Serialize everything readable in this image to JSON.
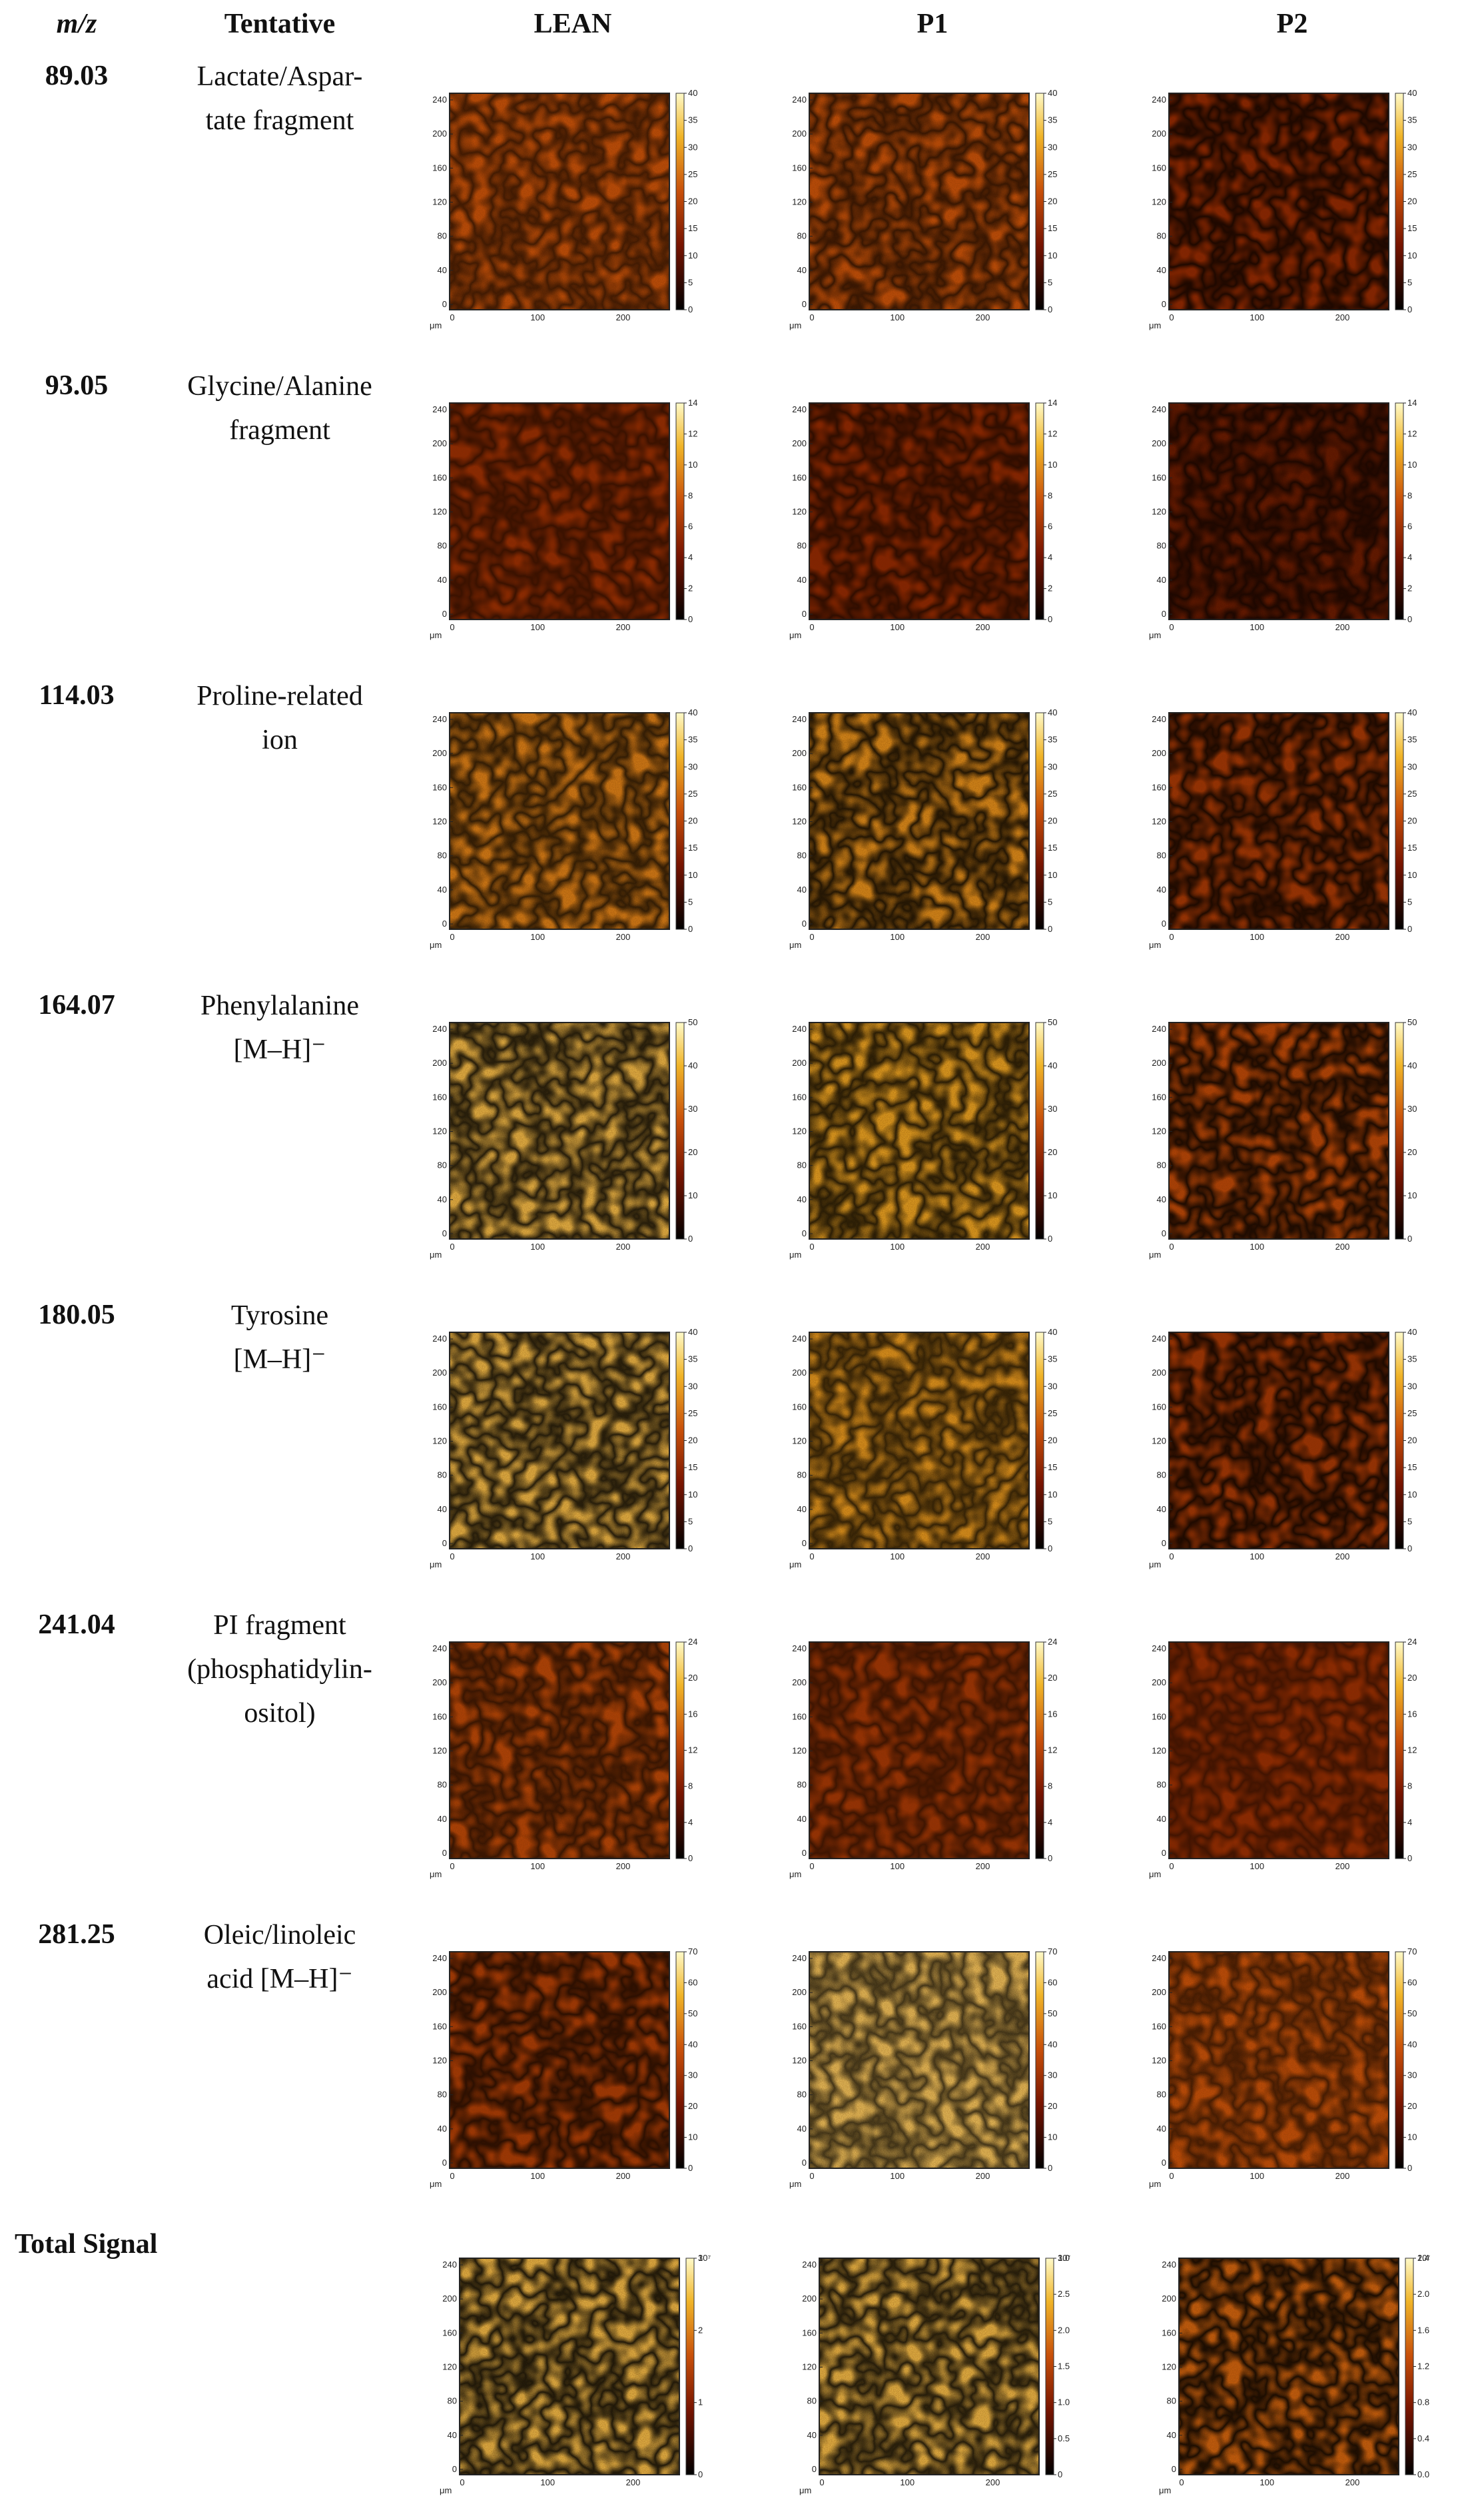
{
  "headers": {
    "mz": "m/z",
    "tentative": "Tentative",
    "columns": [
      "LEAN",
      "P1",
      "P2"
    ]
  },
  "unit_label": "μm",
  "x_ticks": [
    "0",
    "100",
    "200"
  ],
  "y_ticks": [
    "0",
    "40",
    "80",
    "120",
    "160",
    "200",
    "240"
  ],
  "rows": [
    {
      "mz": "89.03",
      "tentative": [
        "Lactate/Aspar-",
        "tate fragment"
      ],
      "scale": [
        "0",
        "5",
        "10",
        "15",
        "20",
        "25",
        "30",
        "35",
        "40"
      ],
      "intensity": [
        0.55,
        0.55,
        0.35
      ],
      "crack": [
        0.5,
        0.6,
        0.75
      ]
    },
    {
      "mz": "93.05",
      "tentative": [
        "Glycine/Alanine",
        "fragment"
      ],
      "scale": [
        "0",
        "2",
        "4",
        "6",
        "8",
        "10",
        "12",
        "14"
      ],
      "intensity": [
        0.38,
        0.35,
        0.22
      ],
      "crack": [
        0.4,
        0.5,
        0.6
      ]
    },
    {
      "mz": "114.03",
      "tentative": [
        "Proline-related",
        "ion"
      ],
      "scale": [
        "0",
        "5",
        "10",
        "15",
        "20",
        "25",
        "30",
        "35",
        "40"
      ],
      "intensity": [
        0.68,
        0.72,
        0.42
      ],
      "crack": [
        0.7,
        0.85,
        0.8
      ]
    },
    {
      "mz": "164.07",
      "tentative": [
        "Phenylalanine",
        "[M–H]⁻"
      ],
      "scale": [
        "0",
        "10",
        "20",
        "30",
        "40",
        "50"
      ],
      "intensity": [
        0.85,
        0.78,
        0.5
      ],
      "crack": [
        0.85,
        0.8,
        0.85
      ]
    },
    {
      "mz": "180.05",
      "tentative": [
        "Tyrosine",
        "[M–H]⁻"
      ],
      "scale": [
        "0",
        "5",
        "10",
        "15",
        "20",
        "25",
        "30",
        "35",
        "40"
      ],
      "intensity": [
        0.85,
        0.75,
        0.42
      ],
      "crack": [
        0.85,
        0.7,
        0.8
      ]
    },
    {
      "mz": "241.04",
      "tentative": [
        "PI fragment",
        "(phosphatidylin-",
        "ositol)"
      ],
      "scale": [
        "0",
        "4",
        "8",
        "12",
        "16",
        "20",
        "24"
      ],
      "intensity": [
        0.5,
        0.42,
        0.38
      ],
      "crack": [
        0.55,
        0.4,
        0.3
      ]
    },
    {
      "mz": "281.25",
      "tentative": [
        "Oleic/linoleic",
        "acid [M–H]⁻"
      ],
      "scale": [
        "0",
        "10",
        "20",
        "30",
        "40",
        "50",
        "60",
        "70"
      ],
      "intensity": [
        0.45,
        0.88,
        0.55
      ],
      "crack": [
        0.65,
        0.6,
        0.45
      ]
    }
  ],
  "total": {
    "label": "Total Signal",
    "scales": [
      [
        "0",
        "1",
        "2",
        "3"
      ],
      [
        "0",
        "0.5",
        "1.0",
        "1.5",
        "2.0",
        "2.5",
        "3.0"
      ],
      [
        "0.0",
        "0.4",
        "0.8",
        "1.2",
        "1.6",
        "2.0",
        "2.4"
      ]
    ],
    "exponent": "10⁷",
    "intensity": [
      0.85,
      0.85,
      0.6
    ],
    "crack": [
      0.9,
      0.85,
      0.9
    ]
  }
}
